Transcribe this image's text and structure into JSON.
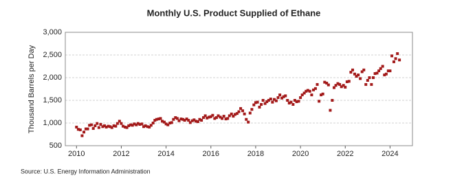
{
  "chart_data": {
    "type": "scatter",
    "title": "Monthly U.S. Product Supplied of Ethane",
    "y_label": "Thousand Barrels per Day",
    "source": "Source: U.S. Energy Information Administration",
    "color": "#a31a1a",
    "grid": true,
    "xlim": [
      2009.5,
      2025
    ],
    "xticks": [
      2010,
      2012,
      2014,
      2016,
      2018,
      2020,
      2022,
      2024
    ],
    "ylim": [
      500,
      3000
    ],
    "yticks": [
      {
        "value": 3000,
        "label": "3,000"
      },
      {
        "value": 2500,
        "label": "2,500"
      },
      {
        "value": 2000,
        "label": "2,000"
      },
      {
        "value": 1500,
        "label": "1,500"
      },
      {
        "value": 1000,
        "label": "1,000"
      },
      500
    ],
    "x": [
      2010.0,
      2010.08,
      2010.17,
      2010.25,
      2010.33,
      2010.42,
      2010.5,
      2010.58,
      2010.67,
      2010.75,
      2010.83,
      2010.92,
      2011.0,
      2011.08,
      2011.17,
      2011.25,
      2011.33,
      2011.42,
      2011.5,
      2011.58,
      2011.67,
      2011.75,
      2011.83,
      2011.92,
      2012.0,
      2012.08,
      2012.17,
      2012.25,
      2012.33,
      2012.42,
      2012.5,
      2012.58,
      2012.67,
      2012.75,
      2012.83,
      2012.92,
      2013.0,
      2013.08,
      2013.17,
      2013.25,
      2013.33,
      2013.42,
      2013.5,
      2013.58,
      2013.67,
      2013.75,
      2013.83,
      2013.92,
      2014.0,
      2014.08,
      2014.17,
      2014.25,
      2014.33,
      2014.42,
      2014.5,
      2014.58,
      2014.67,
      2014.75,
      2014.83,
      2014.92,
      2015.0,
      2015.08,
      2015.17,
      2015.25,
      2015.33,
      2015.42,
      2015.5,
      2015.58,
      2015.67,
      2015.75,
      2015.83,
      2015.92,
      2016.0,
      2016.08,
      2016.17,
      2016.25,
      2016.33,
      2016.42,
      2016.5,
      2016.58,
      2016.67,
      2016.75,
      2016.83,
      2016.92,
      2017.0,
      2017.08,
      2017.17,
      2017.25,
      2017.33,
      2017.42,
      2017.5,
      2017.58,
      2017.67,
      2017.75,
      2017.83,
      2017.92,
      2018.0,
      2018.08,
      2018.17,
      2018.25,
      2018.33,
      2018.42,
      2018.5,
      2018.58,
      2018.67,
      2018.75,
      2018.83,
      2018.92,
      2019.0,
      2019.08,
      2019.17,
      2019.25,
      2019.33,
      2019.42,
      2019.5,
      2019.58,
      2019.67,
      2019.75,
      2019.83,
      2019.92,
      2020.0,
      2020.08,
      2020.17,
      2020.25,
      2020.33,
      2020.42,
      2020.5,
      2020.58,
      2020.67,
      2020.75,
      2020.83,
      2020.92,
      2021.0,
      2021.08,
      2021.17,
      2021.25,
      2021.33,
      2021.42,
      2021.5,
      2021.58,
      2021.67,
      2021.75,
      2021.83,
      2021.92,
      2022.0,
      2022.08,
      2022.17,
      2022.25,
      2022.33,
      2022.42,
      2022.5,
      2022.58,
      2022.67,
      2022.75,
      2022.83,
      2022.92,
      2023.0,
      2023.08,
      2023.17,
      2023.25,
      2023.33,
      2023.42,
      2023.5,
      2023.58,
      2023.67,
      2023.75,
      2023.83,
      2023.92,
      2024.0,
      2024.08,
      2024.17,
      2024.25,
      2024.33,
      2024.42
    ],
    "values": [
      910,
      860,
      850,
      720,
      800,
      870,
      870,
      950,
      960,
      880,
      940,
      990,
      900,
      970,
      920,
      940,
      910,
      930,
      920,
      900,
      940,
      930,
      990,
      1040,
      990,
      930,
      910,
      900,
      940,
      960,
      950,
      980,
      960,
      990,
      970,
      980,
      920,
      940,
      920,
      910,
      950,
      1000,
      1060,
      1080,
      1090,
      1100,
      1040,
      1020,
      980,
      960,
      1000,
      1010,
      1080,
      1120,
      1100,
      1050,
      1090,
      1080,
      1060,
      1090,
      1060,
      1010,
      1050,
      1070,
      1040,
      1030,
      1080,
      1060,
      1120,
      1160,
      1110,
      1130,
      1140,
      1170,
      1100,
      1120,
      1160,
      1130,
      1100,
      1150,
      1090,
      1100,
      1160,
      1200,
      1150,
      1190,
      1210,
      1250,
      1320,
      1270,
      1200,
      1080,
      1020,
      1220,
      1300,
      1400,
      1450,
      1460,
      1350,
      1410,
      1500,
      1430,
      1470,
      1500,
      1530,
      1460,
      1520,
      1490,
      1560,
      1620,
      1550,
      1580,
      1600,
      1500,
      1440,
      1460,
      1410,
      1500,
      1470,
      1480,
      1560,
      1620,
      1660,
      1700,
      1720,
      1700,
      1620,
      1730,
      1760,
      1850,
      1480,
      1620,
      1640,
      1900,
      1880,
      1840,
      1280,
      1500,
      1780,
      1830,
      1870,
      1850,
      1800,
      1830,
      1790,
      1910,
      1920,
      2120,
      2170,
      2080,
      2030,
      2060,
      1980,
      2130,
      2170,
      1850,
      1940,
      2000,
      1850,
      2000,
      2090,
      2100,
      2150,
      2200,
      2250,
      2060,
      2080,
      2150,
      2150,
      2480,
      2350,
      2420,
      2530,
      2390
    ]
  }
}
